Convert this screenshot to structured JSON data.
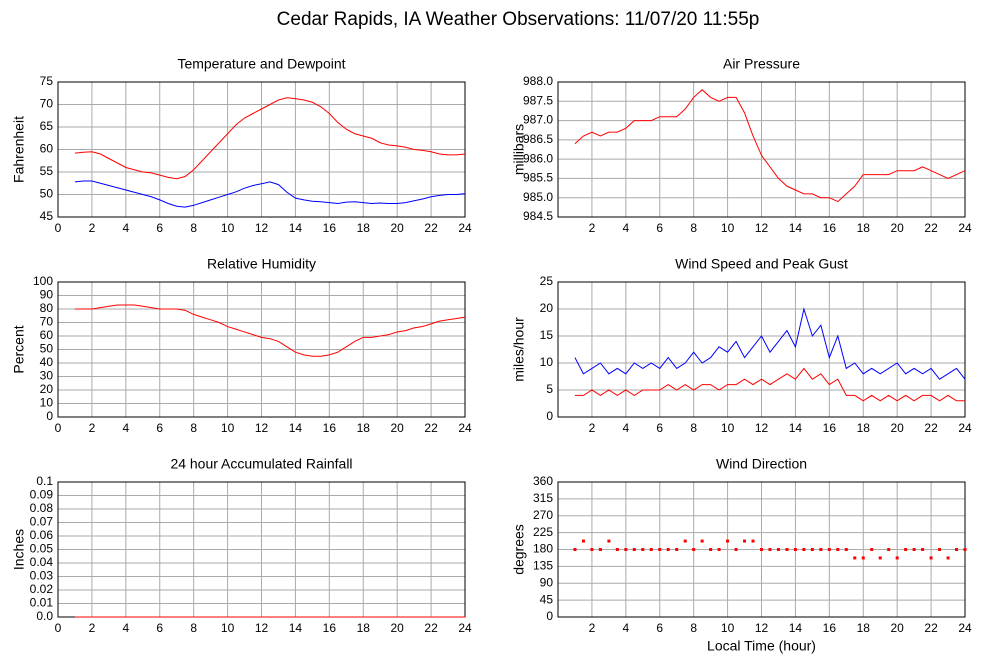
{
  "title": "Cedar Rapids, IA Weather Observations: 11/07/20 11:55p",
  "chart_data": [
    {
      "type": "line",
      "title": "Temperature and Dewpoint",
      "ylabel": "Fahrenheit",
      "grid": true,
      "xlim": [
        0,
        24
      ],
      "xticks": [
        0,
        2,
        4,
        6,
        8,
        10,
        12,
        14,
        16,
        18,
        20,
        22,
        24
      ],
      "ylim": [
        45,
        75
      ],
      "yticks": [
        45,
        50,
        55,
        60,
        65,
        70,
        75
      ],
      "x": [
        1,
        1.5,
        2,
        2.5,
        3,
        3.5,
        4,
        4.5,
        5,
        5.5,
        6,
        6.5,
        7,
        7.5,
        8,
        8.5,
        9,
        9.5,
        10,
        10.5,
        11,
        11.5,
        12,
        12.5,
        13,
        13.5,
        14,
        14.5,
        15,
        15.5,
        16,
        16.5,
        17,
        17.5,
        18,
        18.5,
        19,
        19.5,
        20,
        20.5,
        21,
        21.5,
        22,
        22.5,
        23,
        23.5,
        24
      ],
      "series": [
        {
          "color": "#ff0000",
          "values": [
            59.2,
            59.4,
            59.5,
            59,
            58,
            57,
            56,
            55.5,
            55,
            54.8,
            54.3,
            53.8,
            53.5,
            54,
            55.5,
            57.5,
            59.5,
            61.5,
            63.5,
            65.5,
            67,
            68,
            69,
            70,
            71,
            71.5,
            71.3,
            71,
            70.5,
            69.5,
            68,
            66,
            64.5,
            63.5,
            63,
            62.5,
            61.5,
            61,
            60.8,
            60.5,
            60,
            59.8,
            59.5,
            59,
            58.8,
            58.8,
            59
          ]
        },
        {
          "color": "#0000ff",
          "values": [
            52.8,
            53,
            53,
            52.5,
            52,
            51.5,
            51,
            50.5,
            50,
            49.5,
            48.8,
            48,
            47.4,
            47.2,
            47.6,
            48.2,
            48.8,
            49.4,
            50,
            50.6,
            51.4,
            52,
            52.4,
            52.8,
            52.2,
            50.5,
            49.2,
            48.8,
            48.5,
            48.4,
            48.2,
            48,
            48.3,
            48.4,
            48.2,
            48,
            48.1,
            48,
            48,
            48.2,
            48.6,
            49,
            49.5,
            49.8,
            50,
            50,
            50.2
          ]
        }
      ]
    },
    {
      "type": "line",
      "title": "Air Pressure",
      "ylabel": "millibars",
      "grid": true,
      "xlim": [
        0,
        24
      ],
      "xticks": [
        2,
        4,
        6,
        8,
        10,
        12,
        14,
        16,
        18,
        20,
        22,
        24
      ],
      "ylim": [
        984.5,
        988
      ],
      "yticks": [
        {
          "value": 984.5,
          "label": "984.5"
        },
        {
          "value": 985,
          "label": "985.0"
        },
        {
          "value": 985.5,
          "label": "985.5"
        },
        {
          "value": 986,
          "label": "986.0"
        },
        {
          "value": 986.5,
          "label": "986.5"
        },
        {
          "value": 987,
          "label": "987.0"
        },
        {
          "value": 987.5,
          "label": "987.5"
        },
        {
          "value": 988,
          "label": "988.0"
        }
      ],
      "x": [
        1,
        1.5,
        2,
        2.5,
        3,
        3.5,
        4,
        4.5,
        5,
        5.5,
        6,
        6.5,
        7,
        7.5,
        8,
        8.5,
        9,
        9.5,
        10,
        10.5,
        11,
        11.5,
        12,
        12.5,
        13,
        13.5,
        14,
        14.5,
        15,
        15.5,
        16,
        16.5,
        17,
        17.5,
        18,
        18.5,
        19,
        19.5,
        20,
        20.5,
        21,
        21.5,
        22,
        22.5,
        23,
        23.5,
        24
      ],
      "series": [
        {
          "color": "#ff0000",
          "values": [
            986.4,
            986.6,
            986.7,
            986.6,
            986.7,
            986.7,
            986.8,
            987,
            987,
            987,
            987.1,
            987.1,
            987.1,
            987.3,
            987.6,
            987.8,
            987.6,
            987.5,
            987.6,
            987.6,
            987.2,
            986.6,
            986.1,
            985.8,
            985.5,
            985.3,
            985.2,
            985.1,
            985.1,
            985,
            985,
            984.9,
            985.1,
            985.3,
            985.6,
            985.6,
            985.6,
            985.6,
            985.7,
            985.7,
            985.7,
            985.8,
            985.7,
            985.6,
            985.5,
            985.6,
            985.7
          ]
        }
      ]
    },
    {
      "type": "line",
      "title": "Relative Humidity",
      "ylabel": "Percent",
      "grid": true,
      "xlim": [
        0,
        24
      ],
      "xticks": [
        0,
        2,
        4,
        6,
        8,
        10,
        12,
        14,
        16,
        18,
        20,
        22,
        24
      ],
      "ylim": [
        0,
        100
      ],
      "yticks": [
        0,
        10,
        20,
        30,
        40,
        50,
        60,
        70,
        80,
        90,
        100
      ],
      "x": [
        1,
        1.5,
        2,
        2.5,
        3,
        3.5,
        4,
        4.5,
        5,
        5.5,
        6,
        6.5,
        7,
        7.5,
        8,
        8.5,
        9,
        9.5,
        10,
        10.5,
        11,
        11.5,
        12,
        12.5,
        13,
        13.5,
        14,
        14.5,
        15,
        15.5,
        16,
        16.5,
        17,
        17.5,
        18,
        18.5,
        19,
        19.5,
        20,
        20.5,
        21,
        21.5,
        22,
        22.5,
        23,
        23.5,
        24
      ],
      "series": [
        {
          "color": "#ff0000",
          "values": [
            80,
            80,
            80,
            81,
            82,
            83,
            83,
            83,
            82,
            81,
            80,
            80,
            80,
            79,
            76,
            74,
            72,
            70,
            67,
            65,
            63,
            61,
            59,
            58,
            56,
            52,
            48,
            46,
            45,
            45,
            46,
            48,
            52,
            56,
            59,
            59,
            60,
            61,
            63,
            64,
            66,
            67,
            69,
            71,
            72,
            73,
            74
          ]
        }
      ]
    },
    {
      "type": "line",
      "title": "Wind Speed and Peak Gust",
      "ylabel": "miles/hour",
      "grid": true,
      "xlim": [
        0,
        24
      ],
      "xticks": [
        2,
        4,
        6,
        8,
        10,
        12,
        14,
        16,
        18,
        20,
        22,
        24
      ],
      "ylim": [
        0,
        25
      ],
      "yticks": [
        0,
        5,
        10,
        15,
        20,
        25
      ],
      "x": [
        1,
        1.5,
        2,
        2.5,
        3,
        3.5,
        4,
        4.5,
        5,
        5.5,
        6,
        6.5,
        7,
        7.5,
        8,
        8.5,
        9,
        9.5,
        10,
        10.5,
        11,
        11.5,
        12,
        12.5,
        13,
        13.5,
        14,
        14.5,
        15,
        15.5,
        16,
        16.5,
        17,
        17.5,
        18,
        18.5,
        19,
        19.5,
        20,
        20.5,
        21,
        21.5,
        22,
        22.5,
        23,
        23.5,
        24
      ],
      "series": [
        {
          "color": "#0000ff",
          "values": [
            11,
            8,
            9,
            10,
            8,
            9,
            8,
            10,
            9,
            10,
            9,
            11,
            9,
            10,
            12,
            10,
            11,
            13,
            12,
            14,
            11,
            13,
            15,
            12,
            14,
            16,
            13,
            20,
            15,
            17,
            11,
            15,
            9,
            10,
            8,
            9,
            8,
            9,
            10,
            8,
            9,
            8,
            9,
            7,
            8,
            9,
            7
          ]
        },
        {
          "color": "#ff0000",
          "values": [
            4,
            4,
            5,
            4,
            5,
            4,
            5,
            4,
            5,
            5,
            5,
            6,
            5,
            6,
            5,
            6,
            6,
            5,
            6,
            6,
            7,
            6,
            7,
            6,
            7,
            8,
            7,
            9,
            7,
            8,
            6,
            7,
            4,
            4,
            3,
            4,
            3,
            4,
            3,
            4,
            3,
            4,
            4,
            3,
            4,
            3,
            3
          ]
        }
      ]
    },
    {
      "type": "line",
      "title": "24 hour Accumulated Rainfall",
      "ylabel": "Inches",
      "grid": true,
      "xlim": [
        0,
        24
      ],
      "xticks": [
        0,
        2,
        4,
        6,
        8,
        10,
        12,
        14,
        16,
        18,
        20,
        22,
        24
      ],
      "ylim": [
        0,
        0.1
      ],
      "yticks": [
        {
          "value": 0,
          "label": "0.0"
        },
        0.01,
        0.02,
        0.03,
        0.04,
        0.05,
        0.06,
        0.07,
        0.08,
        0.09,
        0.1
      ],
      "x": [
        1,
        1.5,
        2,
        2.5,
        3,
        3.5,
        4,
        4.5,
        5,
        5.5,
        6,
        6.5,
        7,
        7.5,
        8,
        8.5,
        9,
        9.5,
        10,
        10.5,
        11,
        11.5,
        12,
        12.5,
        13,
        13.5,
        14,
        14.5,
        15,
        15.5,
        16,
        16.5,
        17,
        17.5,
        18,
        18.5,
        19,
        19.5,
        20,
        20.5,
        21,
        21.5,
        22,
        22.5,
        23,
        23.5,
        24
      ],
      "series": [
        {
          "color": "#ff0000",
          "values": [
            0,
            0,
            0,
            0,
            0,
            0,
            0,
            0,
            0,
            0,
            0,
            0,
            0,
            0,
            0,
            0,
            0,
            0,
            0,
            0,
            0,
            0,
            0,
            0,
            0,
            0,
            0,
            0,
            0,
            0,
            0,
            0,
            0,
            0,
            0,
            0,
            0,
            0,
            0,
            0,
            0,
            0,
            0,
            0,
            0,
            0,
            0
          ]
        }
      ]
    },
    {
      "type": "scatter",
      "title": "Wind Direction",
      "ylabel": "degrees",
      "xlabel": "Local Time (hour)",
      "grid": true,
      "xlim": [
        0,
        24
      ],
      "xticks": [
        2,
        4,
        6,
        8,
        10,
        12,
        14,
        16,
        18,
        20,
        22,
        24
      ],
      "ylim": [
        0,
        360
      ],
      "yticks": [
        0,
        45,
        90,
        135,
        180,
        225,
        270,
        315,
        360
      ],
      "x": [
        1,
        1.5,
        2,
        2.5,
        3,
        3.5,
        4,
        4.5,
        5,
        5.5,
        6,
        6.5,
        7,
        7.5,
        8,
        8.5,
        9,
        9.5,
        10,
        10.5,
        11,
        11.5,
        12,
        12.5,
        13,
        13.5,
        14,
        14.5,
        15,
        15.5,
        16,
        16.5,
        17,
        17.5,
        18,
        18.5,
        19,
        19.5,
        20,
        20.5,
        21,
        21.5,
        22,
        22.5,
        23,
        23.5,
        24
      ],
      "series": [
        {
          "color": "#ff0000",
          "values": [
            180,
            202.5,
            180,
            180,
            202.5,
            180,
            180,
            180,
            180,
            180,
            180,
            180,
            180,
            202.5,
            180,
            202.5,
            180,
            180,
            202.5,
            180,
            202.5,
            202.5,
            180,
            180,
            180,
            180,
            180,
            180,
            180,
            180,
            180,
            180,
            180,
            157.5,
            157.5,
            180,
            157.5,
            180,
            157.5,
            180,
            180,
            180,
            157.5,
            180,
            157.5,
            180,
            180
          ]
        }
      ]
    }
  ]
}
